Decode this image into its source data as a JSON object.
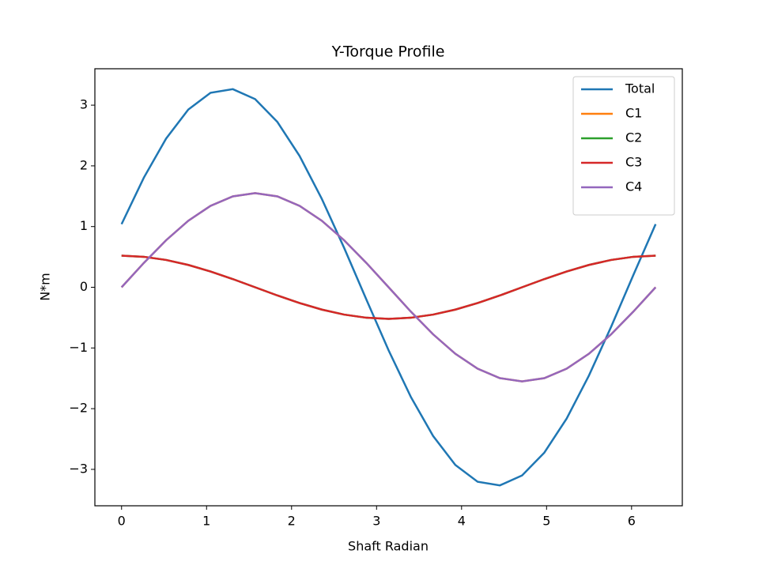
{
  "chart_data": {
    "type": "line",
    "title": "Y-Torque Profile",
    "x_label": "Shaft Radian",
    "y_label": "N*m",
    "x": [
      0,
      0.262,
      0.524,
      0.785,
      1.047,
      1.309,
      1.571,
      1.833,
      2.094,
      2.356,
      2.618,
      2.88,
      3.142,
      3.403,
      3.665,
      3.927,
      4.189,
      4.451,
      4.712,
      4.974,
      5.236,
      5.498,
      5.76,
      6.021,
      6.283
    ],
    "series": [
      {
        "name": "Total",
        "color": "#1f77b4",
        "values": [
          1.04,
          1.806,
          2.45,
          2.928,
          3.204,
          3.264,
          3.1,
          2.724,
          2.164,
          1.456,
          0.65,
          -0.202,
          -1.04,
          -1.806,
          -2.45,
          -2.928,
          -3.204,
          -3.264,
          -3.1,
          -2.724,
          -2.164,
          -1.456,
          -0.65,
          0.202,
          1.04
        ]
      },
      {
        "name": "C1",
        "color": "#ff7f0e",
        "values": [
          0,
          0.401,
          0.775,
          1.096,
          1.342,
          1.497,
          1.55,
          1.497,
          1.342,
          1.096,
          0.775,
          0.401,
          0,
          -0.401,
          -0.775,
          -1.096,
          -1.342,
          -1.497,
          -1.55,
          -1.497,
          -1.342,
          -1.096,
          -0.775,
          -0.401,
          0
        ]
      },
      {
        "name": "C2",
        "color": "#2ca02c",
        "values": [
          0.52,
          0.502,
          0.45,
          0.368,
          0.26,
          0.135,
          0,
          -0.135,
          -0.26,
          -0.368,
          -0.45,
          -0.502,
          -0.52,
          -0.502,
          -0.45,
          -0.368,
          -0.26,
          -0.135,
          0,
          0.135,
          0.26,
          0.368,
          0.45,
          0.502,
          0.52
        ]
      },
      {
        "name": "C3",
        "color": "#d62728",
        "values": [
          0.52,
          0.502,
          0.45,
          0.368,
          0.26,
          0.135,
          0,
          -0.135,
          -0.26,
          -0.368,
          -0.45,
          -0.502,
          -0.52,
          -0.502,
          -0.45,
          -0.368,
          -0.26,
          -0.135,
          0,
          0.135,
          0.26,
          0.368,
          0.45,
          0.502,
          0.52
        ]
      },
      {
        "name": "C4",
        "color": "#9467bd",
        "values": [
          0,
          0.401,
          0.775,
          1.096,
          1.342,
          1.497,
          1.55,
          1.497,
          1.342,
          1.096,
          0.775,
          0.401,
          0,
          -0.401,
          -0.775,
          -1.096,
          -1.342,
          -1.497,
          -1.55,
          -1.497,
          -1.342,
          -1.096,
          -0.775,
          -0.401,
          0
        ]
      }
    ],
    "xlim": [
      -0.314,
      6.597
    ],
    "ylim": [
      -3.6,
      3.6
    ],
    "xticks": [
      0,
      1,
      2,
      3,
      4,
      5,
      6
    ],
    "yticks": [
      {
        "value": -3,
        "label": "−3"
      },
      {
        "value": -2,
        "label": "−2"
      },
      {
        "value": -1,
        "label": "−1"
      },
      0,
      1,
      2,
      3
    ],
    "grid": false,
    "legend": "upper right"
  }
}
